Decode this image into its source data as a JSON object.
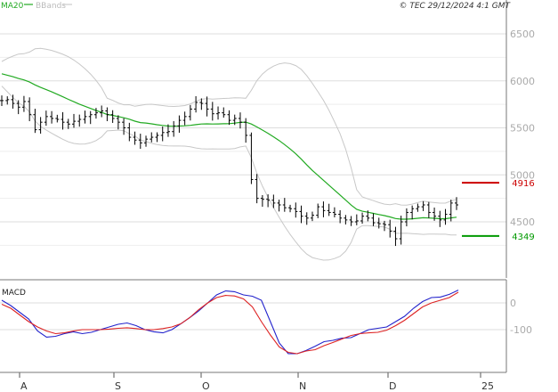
{
  "header": {
    "ma_label": "MA20",
    "bb_label": "BBands",
    "copyright": "© TEC 29/12/2024 4:1 GMT"
  },
  "macd_label": "MACD",
  "colors": {
    "ma": "#22aa22",
    "bands": "#c8c8c8",
    "price": "#000000",
    "macd": "#2222cc",
    "signal": "#dd2222",
    "resistance": "#cc0000",
    "support": "#009900",
    "grid": "#dddddd",
    "axis_text": "#aaaaaa"
  },
  "chart_data": [
    {
      "type": "ohlc",
      "x_labels": [
        "A",
        "S",
        "O",
        "N",
        "D",
        "25"
      ],
      "ylim": [
        4000,
        6900
      ],
      "yticks": [
        4500,
        5000,
        5500,
        6000,
        6500
      ],
      "ytick_labels": [
        "4500",
        "5000",
        "5500",
        "6000",
        "6500"
      ],
      "close": [
        5790,
        5800,
        5760,
        5720,
        5780,
        5640,
        5480,
        5560,
        5620,
        5600,
        5590,
        5560,
        5540,
        5570,
        5590,
        5620,
        5640,
        5660,
        5680,
        5640,
        5600,
        5560,
        5500,
        5400,
        5370,
        5340,
        5380,
        5400,
        5420,
        5450,
        5460,
        5520,
        5580,
        5620,
        5700,
        5770,
        5760,
        5700,
        5650,
        5660,
        5640,
        5580,
        5600,
        5560,
        5420,
        4950,
        4750,
        4740,
        4730,
        4700,
        4680,
        4650,
        4640,
        4610,
        4560,
        4540,
        4570,
        4660,
        4620,
        4600,
        4580,
        4540,
        4520,
        4500,
        4510,
        4560,
        4540,
        4490,
        4480,
        4470,
        4400,
        4320,
        4500,
        4600,
        4640,
        4660,
        4680,
        4600,
        4560,
        4520,
        4580,
        4700,
        4680
      ],
      "levels": [
        {
          "value": 4916,
          "label": "4916",
          "color": "#cc0000"
        },
        {
          "value": 4349,
          "label": "4349",
          "color": "#009900"
        }
      ],
      "ma_label": "MA20",
      "bands_label": "BBands"
    },
    {
      "type": "line",
      "title": "MACD",
      "ylim": [
        -190,
        60
      ],
      "yticks": [
        0,
        -100
      ],
      "ytick_labels": [
        "0",
        "-100"
      ],
      "series": [
        {
          "values": [
            10,
            -10,
            -35,
            -60,
            -105,
            -128,
            -125,
            -115,
            -108,
            -115,
            -110,
            -100,
            -90,
            -80,
            -75,
            -85,
            -100,
            -108,
            -112,
            -100,
            -78,
            -55,
            -30,
            0,
            30,
            45,
            42,
            30,
            25,
            10,
            -70,
            -150,
            -190,
            -190,
            -178,
            -162,
            -145,
            -140,
            -132,
            -130,
            -115,
            -100,
            -95,
            -90,
            -70,
            -50,
            -20,
            5,
            20,
            22,
            32,
            48
          ],
          "color": "#2222cc"
        },
        {
          "values": [
            -5,
            -20,
            -45,
            -70,
            -90,
            -105,
            -115,
            -112,
            -105,
            -100,
            -100,
            -100,
            -98,
            -95,
            -93,
            -96,
            -100,
            -100,
            -96,
            -90,
            -78,
            -55,
            -25,
            0,
            20,
            28,
            26,
            15,
            -15,
            -70,
            -120,
            -165,
            -185,
            -190,
            -180,
            -175,
            -160,
            -148,
            -135,
            -122,
            -115,
            -112,
            -110,
            -102,
            -85,
            -65,
            -40,
            -15,
            0,
            10,
            20,
            40
          ],
          "color": "#dd2222"
        }
      ]
    }
  ]
}
